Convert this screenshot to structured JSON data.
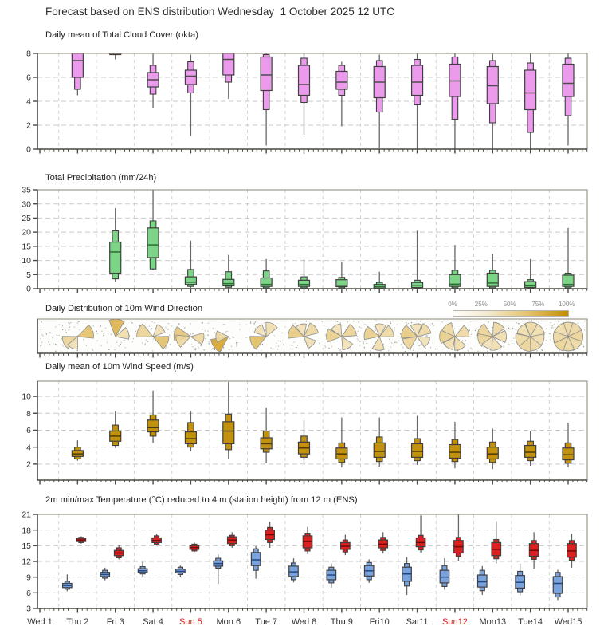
{
  "title": "Forecast based on ENS distribution Wednesday  1 October 2025 12 UTC",
  "panels": {
    "cloud": {
      "title": "Daily mean of Total Cloud Cover (okta)"
    },
    "precip": {
      "title": "Total Precipitation (mm/24h)"
    },
    "wind_dir": {
      "title": "Daily Distribution of 10m Wind Direction"
    },
    "wind_speed": {
      "title": "Daily mean of 10m Wind Speed (m/s)"
    },
    "temp": {
      "title": "2m min/max Temperature (°C) reduced to 4 m (station height) from 12 m (ENS)"
    }
  },
  "wind_legend": {
    "labels": [
      "0%",
      "25%",
      "50%",
      "75%",
      "100%"
    ]
  },
  "day_labels": [
    "Wed 1",
    "Thu 2",
    "Fri 3",
    "Sat 4",
    "Sun 5",
    "Mon 6",
    "Tue 7",
    "Wed 8",
    "Thu 9",
    "Fri10",
    "Sat11",
    "Sun12",
    "Mon13",
    "Tue14",
    "Wed15"
  ],
  "sunday_indices": [
    4,
    11
  ],
  "colors": {
    "cloud_fill": "#ec9bec",
    "precip_fill": "#7cd486",
    "wind_fill": "#c2920e",
    "temp_min_fill": "#7aa3dd",
    "temp_max_fill": "#dc1f1f",
    "weekday_label": "#333333",
    "sunday_label": "#e02020",
    "rose_light": "#faf3df",
    "rose_dark": "#d09912",
    "panel_border": "#8b8475",
    "axis": "#4a4a44",
    "grid": "#c9c9c9",
    "whisker": "#666666"
  },
  "chart_data": [
    {
      "type": "box",
      "id": "cloud",
      "title": "Daily mean of Total Cloud Cover (okta)",
      "ylabel": "okta",
      "ylim": [
        0,
        8
      ],
      "yticks": [
        0,
        2,
        4,
        6,
        8
      ],
      "box_format": [
        "min",
        "p10",
        "p25",
        "median",
        "p75",
        "p90",
        "max"
      ],
      "categories": [
        "Wed 1",
        "Thu 2",
        "Fri 3",
        "Sat 4",
        "Sun 5",
        "Mon 6",
        "Tue 7",
        "Wed 8",
        "Thu 9",
        "Fri10",
        "Sat11",
        "Sun12",
        "Mon13",
        "Tue14",
        "Wed15"
      ],
      "boxes": [
        null,
        [
          4.5,
          5.0,
          6.0,
          7.4,
          8,
          8,
          8
        ],
        [
          7.5,
          7.9,
          7.9,
          8,
          8,
          8,
          8
        ],
        [
          3.4,
          4.6,
          5.2,
          5.8,
          6.4,
          7.0,
          8
        ],
        [
          1.1,
          4.7,
          5.4,
          6.1,
          6.6,
          7.3,
          7.9
        ],
        [
          4.2,
          5.6,
          6.2,
          7.5,
          8,
          8,
          8
        ],
        [
          0.3,
          3.3,
          4.9,
          6.2,
          7.7,
          7.9,
          8
        ],
        [
          1.2,
          3.9,
          4.5,
          5.4,
          7.0,
          7.6,
          8
        ],
        [
          1.9,
          4.5,
          5.0,
          5.6,
          6.5,
          7.0,
          7.3
        ],
        [
          0.1,
          3.1,
          4.3,
          5.6,
          6.9,
          7.4,
          7.9
        ],
        [
          0,
          3.7,
          4.5,
          5.6,
          7.0,
          7.5,
          8
        ],
        [
          0,
          2.5,
          4.4,
          5.7,
          7.1,
          7.7,
          8
        ],
        [
          0,
          2.2,
          3.8,
          5.3,
          6.9,
          7.4,
          8
        ],
        [
          0,
          1.4,
          3.3,
          4.7,
          6.6,
          7.2,
          8
        ],
        [
          0.3,
          2.8,
          4.4,
          5.5,
          7.1,
          7.6,
          8
        ]
      ]
    },
    {
      "type": "box",
      "id": "precip",
      "title": "Total Precipitation (mm/24h)",
      "ylabel": "mm/24h",
      "ylim": [
        0,
        35
      ],
      "yticks": [
        0,
        5,
        10,
        15,
        20,
        25,
        30,
        35
      ],
      "box_format": [
        "min",
        "p10",
        "p25",
        "median",
        "p75",
        "p90",
        "max"
      ],
      "categories": [
        "Wed 1",
        "Thu 2",
        "Fri 3",
        "Sat 4",
        "Sun 5",
        "Mon 6",
        "Tue 7",
        "Wed 8",
        "Thu 9",
        "Fri10",
        "Sat11",
        "Sun12",
        "Mon13",
        "Tue14",
        "Wed15"
      ],
      "boxes": [
        null,
        null,
        [
          2.5,
          3.5,
          5.5,
          13.0,
          16.5,
          20.5,
          28.5
        ],
        [
          6.5,
          7.0,
          11.0,
          15.5,
          21.5,
          24.0,
          35
        ],
        [
          0.3,
          0.8,
          1.5,
          2.3,
          4.2,
          6.8,
          17
        ],
        [
          0,
          0.5,
          1.0,
          1.8,
          3.3,
          6.0,
          12
        ],
        [
          0,
          0.3,
          0.8,
          1.5,
          3.8,
          6.3,
          10.5
        ],
        [
          0,
          0.3,
          0.8,
          1.5,
          3.0,
          4.2,
          10.3
        ],
        [
          0,
          0.3,
          0.7,
          1.2,
          3.2,
          4.0,
          9.5
        ],
        [
          0,
          0,
          0.2,
          0.7,
          1.5,
          2.2,
          6
        ],
        [
          0,
          0.2,
          0.4,
          1.2,
          2.2,
          3.0,
          20.5
        ],
        [
          0,
          0.3,
          0.8,
          1.6,
          5.0,
          6.5,
          15.5
        ],
        [
          0,
          0.3,
          0.8,
          2.0,
          5.5,
          6.5,
          12.3
        ],
        [
          0,
          0.2,
          0.4,
          1.0,
          2.5,
          3.2,
          10.5
        ],
        [
          0,
          0.3,
          0.8,
          1.5,
          4.8,
          5.5,
          21.5
        ]
      ]
    },
    {
      "type": "windrose",
      "id": "wind_dir",
      "title": "Daily Distribution of 10m Wind Direction",
      "legend_labels": [
        "0%",
        "25%",
        "50%",
        "75%",
        "100%"
      ],
      "petal_format": [
        "compass_deg",
        "length_frac",
        "shade_frac"
      ],
      "roses": [
        null,
        [
          [
            70,
            0.62,
            0.55
          ],
          [
            245,
            0.55,
            0.35
          ],
          [
            205,
            0.3,
            0.2
          ]
        ],
        [
          [
            5,
            0.75,
            0.7
          ],
          [
            75,
            0.4,
            0.25
          ]
        ],
        [
          [
            295,
            0.65,
            0.35
          ],
          [
            115,
            0.6,
            0.55
          ],
          [
            45,
            0.3,
            0.2
          ]
        ],
        [
          [
            280,
            0.7,
            0.5
          ],
          [
            250,
            0.5,
            0.3
          ],
          [
            100,
            0.35,
            0.3
          ]
        ],
        [
          [
            235,
            0.8,
            0.85
          ],
          [
            270,
            0.3,
            0.3
          ]
        ],
        [
          [
            245,
            0.65,
            0.6
          ],
          [
            25,
            0.45,
            0.25
          ],
          [
            315,
            0.3,
            0.2
          ]
        ],
        [
          [
            290,
            0.6,
            0.45
          ],
          [
            50,
            0.5,
            0.3
          ],
          [
            345,
            0.3,
            0.2
          ],
          [
            135,
            0.25,
            0.2
          ]
        ],
        [
          [
            275,
            0.55,
            0.4
          ],
          [
            60,
            0.5,
            0.35
          ],
          [
            150,
            0.35,
            0.2
          ],
          [
            330,
            0.3,
            0.2
          ]
        ],
        [
          [
            285,
            0.55,
            0.4
          ],
          [
            65,
            0.45,
            0.3
          ],
          [
            185,
            0.4,
            0.25
          ],
          [
            5,
            0.3,
            0.2
          ]
        ],
        [
          [
            290,
            0.6,
            0.45
          ],
          [
            235,
            0.5,
            0.35
          ],
          [
            50,
            0.45,
            0.3
          ],
          [
            120,
            0.3,
            0.2
          ],
          [
            355,
            0.3,
            0.2
          ]
        ],
        [
          [
            270,
            0.55,
            0.4
          ],
          [
            320,
            0.45,
            0.3
          ],
          [
            65,
            0.45,
            0.3
          ],
          [
            155,
            0.4,
            0.25
          ],
          [
            215,
            0.35,
            0.25
          ]
        ],
        [
          [
            300,
            0.55,
            0.35
          ],
          [
            255,
            0.5,
            0.35
          ],
          [
            30,
            0.45,
            0.3
          ],
          [
            90,
            0.4,
            0.25
          ],
          [
            165,
            0.4,
            0.25
          ],
          [
            210,
            0.3,
            0.2
          ]
        ],
        [
          [
            5,
            0.45,
            0.3
          ],
          [
            55,
            0.45,
            0.25
          ],
          [
            105,
            0.4,
            0.25
          ],
          [
            155,
            0.45,
            0.3
          ],
          [
            205,
            0.5,
            0.35
          ],
          [
            255,
            0.5,
            0.3
          ],
          [
            310,
            0.4,
            0.25
          ]
        ],
        [
          [
            0,
            0.45,
            0.3
          ],
          [
            45,
            0.5,
            0.3
          ],
          [
            90,
            0.5,
            0.35
          ],
          [
            135,
            0.5,
            0.3
          ],
          [
            180,
            0.45,
            0.3
          ],
          [
            225,
            0.55,
            0.35
          ],
          [
            270,
            0.5,
            0.3
          ],
          [
            315,
            0.45,
            0.25
          ]
        ]
      ]
    },
    {
      "type": "box",
      "id": "wind_speed",
      "title": "Daily mean of 10m Wind Speed (m/s)",
      "ylabel": "m/s",
      "ylim": [
        0.1,
        11.8
      ],
      "yticks": [
        2,
        4,
        6,
        8,
        10
      ],
      "box_format": [
        "min",
        "p10",
        "p25",
        "median",
        "p75",
        "p90",
        "max"
      ],
      "categories": [
        "Wed 1",
        "Thu 2",
        "Fri 3",
        "Sat 4",
        "Sun 5",
        "Mon 6",
        "Tue 7",
        "Wed 8",
        "Thu 9",
        "Fri10",
        "Sat11",
        "Sun12",
        "Mon13",
        "Tue14",
        "Wed15"
      ],
      "boxes": [
        null,
        [
          2.4,
          2.6,
          2.9,
          3.2,
          3.6,
          4.0,
          4.8
        ],
        [
          3.9,
          4.2,
          4.7,
          5.3,
          5.9,
          6.6,
          8.3
        ],
        [
          4.5,
          5.3,
          5.8,
          6.3,
          7.2,
          7.8,
          10.7
        ],
        [
          3.5,
          4.0,
          4.4,
          5.0,
          5.8,
          6.9,
          8.3
        ],
        [
          2.6,
          3.7,
          4.4,
          5.9,
          7.0,
          7.9,
          11.7
        ],
        [
          2.1,
          3.4,
          3.8,
          4.4,
          5.1,
          5.9,
          8.7
        ],
        [
          2.2,
          2.8,
          3.2,
          3.9,
          4.6,
          5.3,
          7.2
        ],
        [
          1.6,
          2.2,
          2.6,
          3.2,
          3.9,
          4.5,
          7.5
        ],
        [
          1.7,
          2.3,
          2.8,
          3.5,
          4.5,
          5.2,
          7.5
        ],
        [
          1.9,
          2.4,
          2.8,
          3.5,
          4.4,
          5.0,
          7.7
        ],
        [
          1.5,
          2.3,
          2.7,
          3.4,
          4.3,
          4.9,
          7.0
        ],
        [
          1.4,
          2.2,
          2.6,
          3.2,
          4.0,
          4.6,
          6.2
        ],
        [
          1.8,
          2.4,
          2.8,
          3.4,
          4.2,
          4.7,
          5.9
        ],
        [
          1.6,
          2.1,
          2.5,
          3.1,
          3.9,
          4.5,
          6.9
        ]
      ]
    },
    {
      "type": "box-pair",
      "id": "temp",
      "title": "2m min/max Temperature (°C) reduced to 4 m (station height) from 12 m (ENS)",
      "ylabel": "°C",
      "ylim": [
        3,
        21
      ],
      "yticks": [
        3,
        6,
        9,
        12,
        15,
        18,
        21
      ],
      "box_format": [
        "min",
        "p10",
        "p25",
        "median",
        "p75",
        "p90",
        "max"
      ],
      "categories": [
        "Wed 1",
        "Thu 2",
        "Fri 3",
        "Sat 4",
        "Sun 5",
        "Mon 6",
        "Tue 7",
        "Wed 8",
        "Thu 9",
        "Fri10",
        "Sat11",
        "Sun12",
        "Mon13",
        "Tue14",
        "Wed15"
      ],
      "series": [
        {
          "name": "min temperature",
          "boxes": [
            null,
            [
              6.3,
              6.7,
              7.0,
              7.4,
              7.8,
              8.2,
              9.5
            ],
            [
              8.4,
              8.8,
              9.1,
              9.5,
              9.9,
              10.3,
              10.8
            ],
            [
              9.1,
              9.6,
              9.9,
              10.2,
              10.6,
              11.0,
              11.9
            ],
            [
              9.0,
              9.5,
              9.8,
              10.1,
              10.5,
              10.9,
              11.2
            ],
            [
              7.7,
              10.7,
              11.1,
              11.6,
              12.1,
              12.6,
              13.3
            ],
            [
              8.7,
              10.3,
              11.2,
              12.3,
              13.7,
              14.4,
              14.9
            ],
            [
              8.0,
              8.5,
              9.1,
              10.0,
              11.1,
              11.7,
              12.6
            ],
            [
              7.0,
              7.9,
              8.5,
              9.4,
              10.3,
              10.9,
              11.6
            ],
            [
              7.9,
              8.5,
              9.2,
              10.2,
              11.2,
              11.8,
              12.4
            ],
            [
              5.6,
              7.3,
              8.2,
              9.6,
              10.9,
              11.6,
              12.8
            ],
            [
              6.6,
              7.2,
              7.9,
              9.0,
              10.3,
              11.2,
              12.6
            ],
            [
              5.6,
              6.4,
              7.1,
              8.1,
              9.4,
              10.3,
              11.1
            ],
            [
              5.5,
              6.2,
              6.9,
              8.0,
              9.3,
              10.1,
              11.6
            ],
            [
              4.6,
              5.2,
              5.9,
              7.8,
              9.1,
              9.9,
              10.4
            ]
          ]
        },
        {
          "name": "max temperature",
          "boxes": [
            null,
            [
              15.4,
              15.6,
              15.8,
              16.1,
              16.4,
              16.6,
              16.8
            ],
            [
              12.4,
              12.7,
              13.1,
              13.6,
              14.1,
              14.6,
              15.1
            ],
            [
              15.0,
              15.3,
              15.6,
              16.0,
              16.5,
              16.9,
              17.3
            ],
            [
              13.8,
              14.0,
              14.3,
              14.65,
              15.0,
              15.3,
              15.6
            ],
            [
              14.6,
              15.0,
              15.4,
              16.1,
              16.7,
              17.0,
              17.6
            ],
            [
              14.6,
              15.6,
              16.2,
              17.1,
              18.0,
              18.5,
              19.6
            ],
            [
              13.4,
              14.0,
              14.6,
              15.8,
              16.9,
              17.4,
              18.6
            ],
            [
              13.2,
              13.8,
              14.3,
              14.9,
              15.6,
              16.1,
              17.1
            ],
            [
              13.5,
              14.1,
              14.6,
              15.3,
              16.1,
              16.6,
              17.6
            ],
            [
              13.7,
              14.2,
              14.8,
              15.6,
              16.5,
              17.0,
              20.8
            ],
            [
              12.1,
              13.0,
              13.6,
              14.8,
              16.0,
              16.6,
              21.2
            ],
            [
              11.6,
              12.5,
              13.1,
              14.3,
              15.6,
              16.2,
              19.7
            ],
            [
              10.6,
              12.4,
              13.0,
              14.1,
              15.4,
              16.0,
              17.6
            ],
            [
              10.8,
              12.2,
              12.8,
              14.0,
              15.4,
              16.0,
              17.3
            ]
          ]
        }
      ]
    }
  ]
}
